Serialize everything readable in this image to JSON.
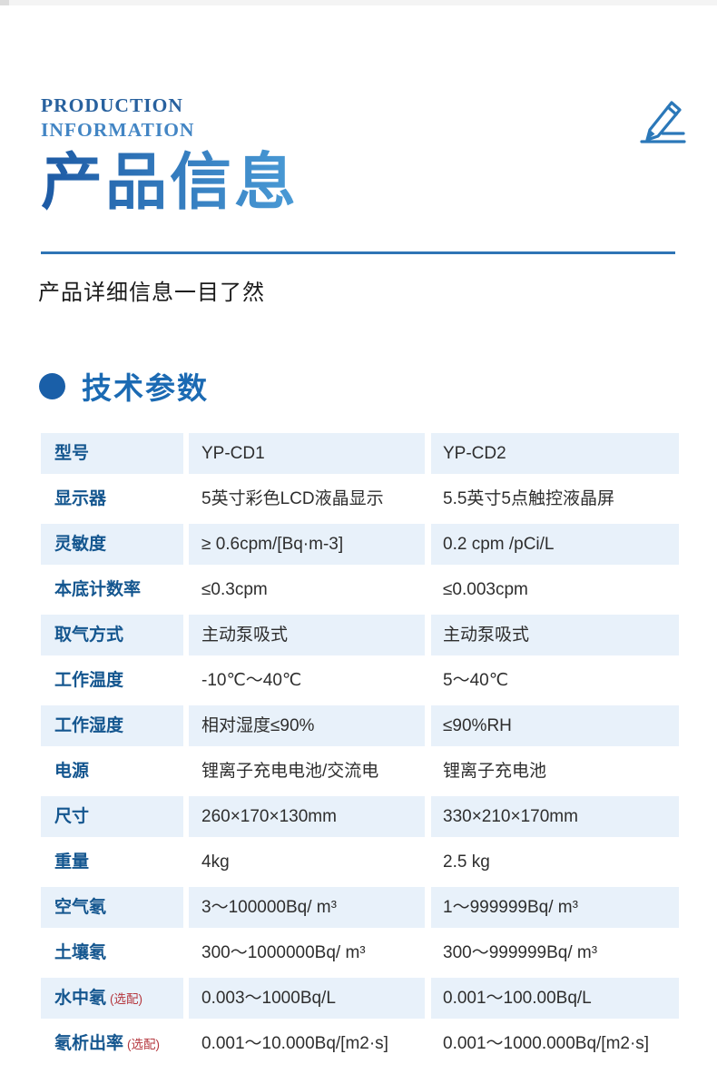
{
  "header": {
    "eyebrow_line1": "PRODUCTION",
    "eyebrow_line2": "INFORMATION",
    "title": "产品信息",
    "subtitle": "产品详细信息一目了然"
  },
  "section": {
    "title": "技术参数"
  },
  "colors": {
    "accent_blue": "#2e74b5",
    "label_blue": "#14568f",
    "row_tint": "#e8f1fa",
    "note_red": "#b5383f",
    "title_gradient_start": "#1d5aa4",
    "title_gradient_end": "#4a9bd6"
  },
  "icons": {
    "pencil": "pencil-underline-icon"
  },
  "table": {
    "rows": [
      {
        "label": "型号",
        "note": "",
        "v1": "YP-CD1",
        "v2": "YP-CD2"
      },
      {
        "label": "显示器",
        "note": "",
        "v1": "5英寸彩色LCD液晶显示",
        "v2": "5.5英寸5点触控液晶屏"
      },
      {
        "label": "灵敏度",
        "note": "",
        "v1": "≥ 0.6cpm/[Bq·m-3]",
        "v2": "0.2 cpm /pCi/L"
      },
      {
        "label": "本底计数率",
        "note": "",
        "v1": "≤0.3cpm",
        "v2": "≤0.003cpm"
      },
      {
        "label": "取气方式",
        "note": "",
        "v1": "主动泵吸式",
        "v2": "主动泵吸式"
      },
      {
        "label": "工作温度",
        "note": "",
        "v1": "-10℃～40℃",
        "v2": "5～40℃"
      },
      {
        "label": "工作湿度",
        "note": "",
        "v1": "相对湿度≤90%",
        "v2": "≤90%RH"
      },
      {
        "label": "电源",
        "note": "",
        "v1": "锂离子充电电池/交流电",
        "v2": "锂离子充电池"
      },
      {
        "label": "尺寸",
        "note": "",
        "v1": "260×170×130mm",
        "v2": "330×210×170mm"
      },
      {
        "label": "重量",
        "note": "",
        "v1": "4kg",
        "v2": "2.5 kg"
      },
      {
        "label": "空气氡",
        "note": "",
        "v1": "3～100000Bq/ m³",
        "v2": "1～999999Bq/ m³"
      },
      {
        "label": "土壤氡",
        "note": "",
        "v1": "300～1000000Bq/ m³",
        "v2": "300～999999Bq/ m³"
      },
      {
        "label": "水中氡",
        "note": "(选配)",
        "v1": "0.003～1000Bq/L",
        "v2": "0.001～100.00Bq/L"
      },
      {
        "label": "氡析出率",
        "note": "(选配)",
        "v1": "0.001～10.000Bq/[m2·s]",
        "v2": "0.001～1000.000Bq/[m2·s]"
      }
    ]
  }
}
